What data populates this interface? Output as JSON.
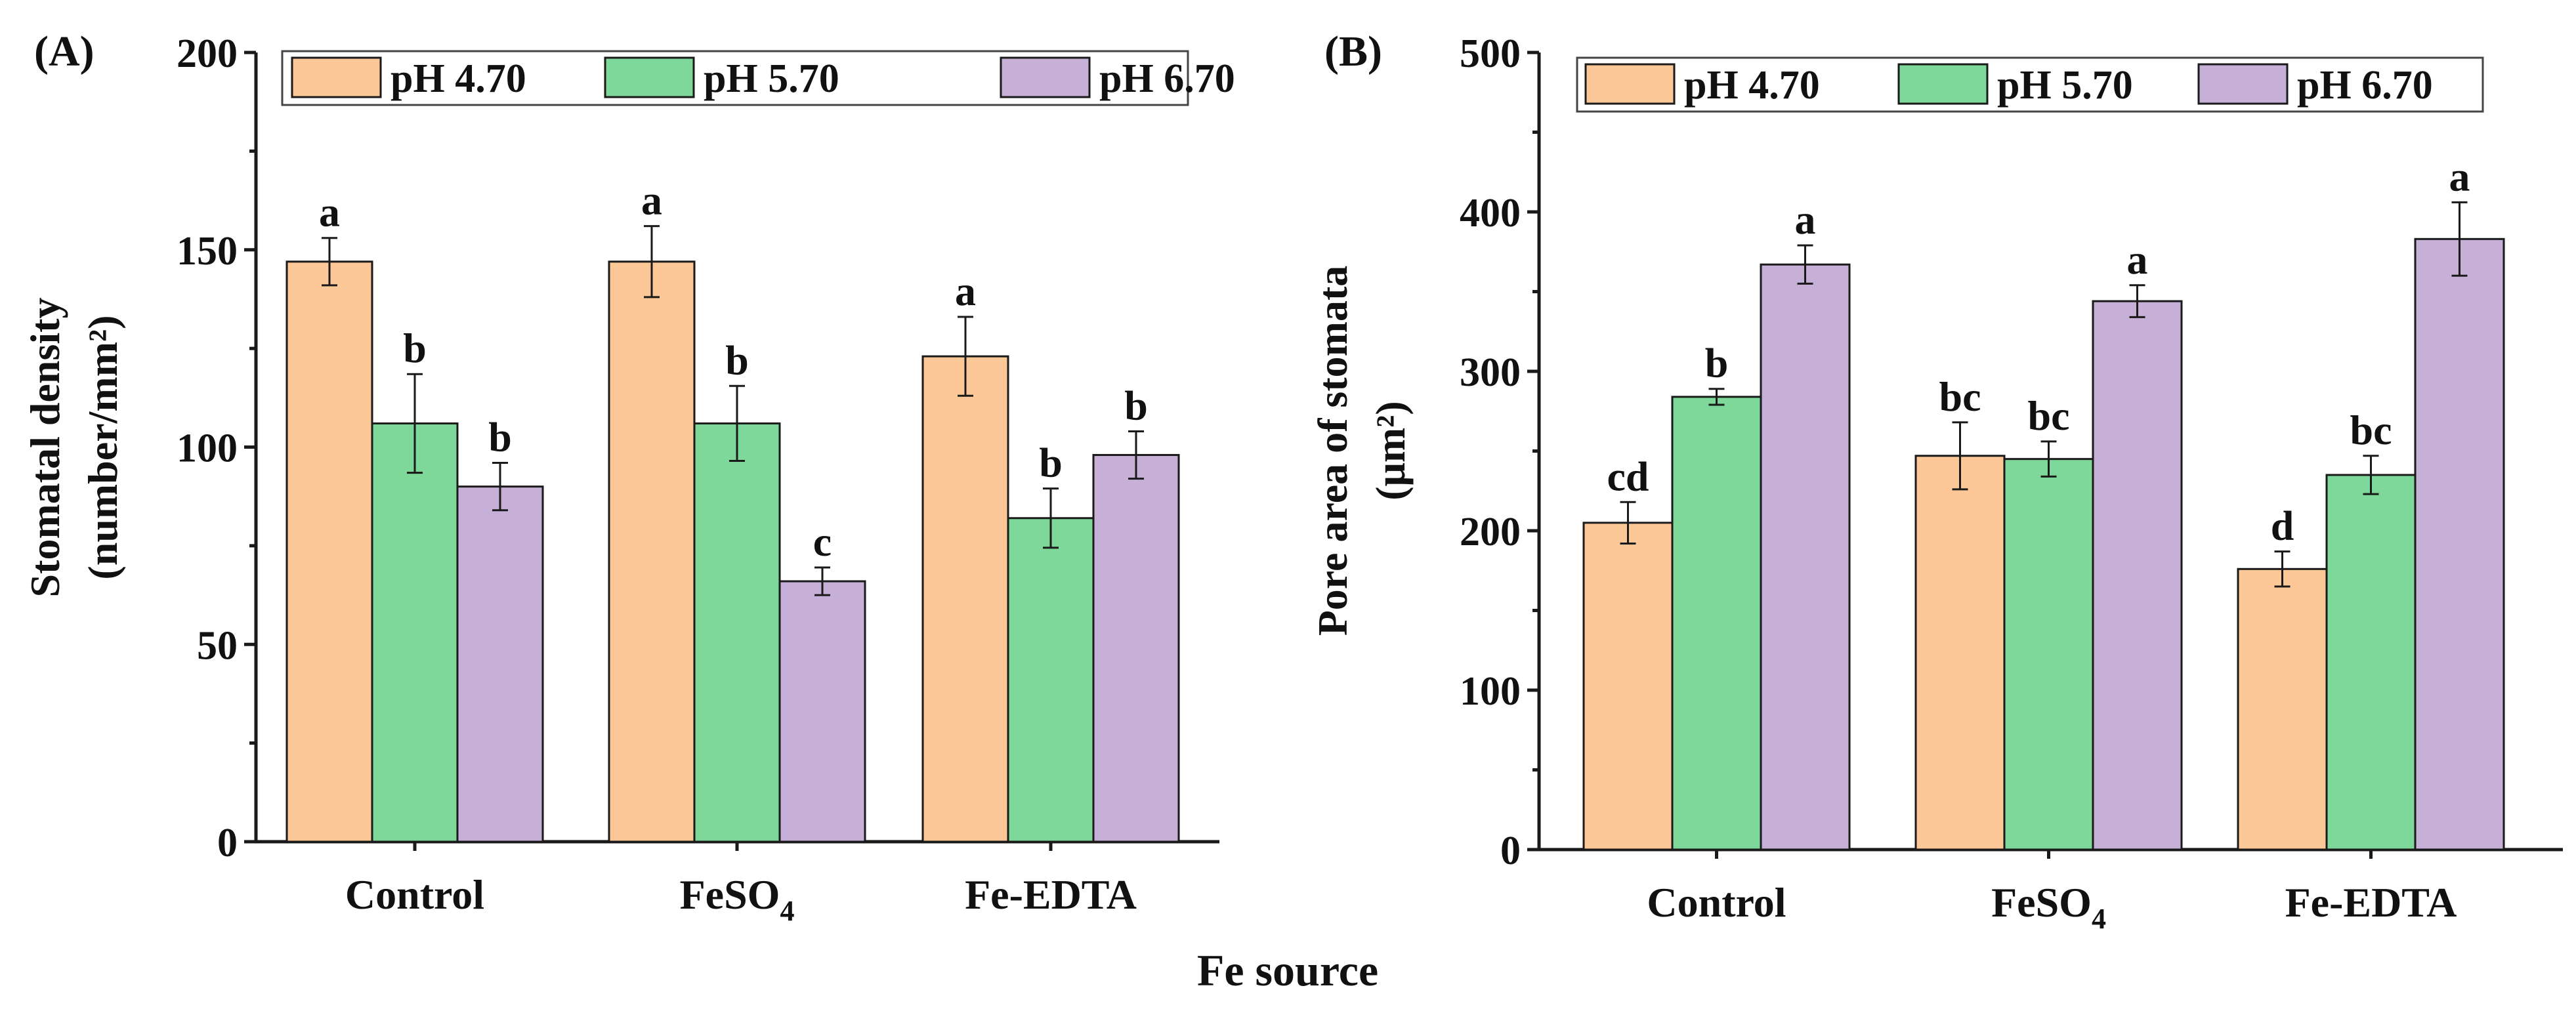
{
  "chart_data": [
    {
      "type": "bar",
      "panel_label": "(A)",
      "title": "",
      "xlabel": "",
      "ylabel": "Stomatal density",
      "ylabel_unit": "(number/mm²)",
      "categories": [
        "Control",
        "FeSO",
        "Fe-EDTA"
      ],
      "category_subscripts": [
        "",
        "4",
        ""
      ],
      "ylim": [
        0,
        200
      ],
      "yticks": [
        0,
        50,
        100,
        150,
        200
      ],
      "ytick_labels": [
        "0",
        "50",
        "100",
        "150",
        "200"
      ],
      "legend_position": "top",
      "series": [
        {
          "name": "pH 4.70",
          "color": "#FDC897",
          "values": [
            147,
            147,
            123
          ],
          "errors": [
            6,
            9,
            10
          ],
          "letters": [
            "a",
            "a",
            "a"
          ]
        },
        {
          "name": "pH 5.70",
          "color": "#7ED899",
          "values": [
            106,
            106,
            82
          ],
          "errors": [
            12.5,
            9.5,
            7.5
          ],
          "letters": [
            "b",
            "b",
            "b"
          ]
        },
        {
          "name": "pH 6.70",
          "color": "#C6B0D8",
          "values": [
            90,
            66,
            98
          ],
          "errors": [
            6,
            3.5,
            6
          ],
          "letters": [
            "b",
            "c",
            "b"
          ]
        }
      ]
    },
    {
      "type": "bar",
      "panel_label": "(B)",
      "title": "",
      "xlabel": "",
      "ylabel": "Pore area of stomata",
      "ylabel_unit": "(μm²)",
      "categories": [
        "Control",
        "FeSO",
        "Fe-EDTA"
      ],
      "category_subscripts": [
        "",
        "4",
        ""
      ],
      "ylim": [
        0,
        500
      ],
      "yticks": [
        0,
        100,
        200,
        300,
        400,
        500
      ],
      "ytick_labels": [
        "0",
        "100",
        "200",
        "300",
        "400",
        "500"
      ],
      "legend_position": "top",
      "series": [
        {
          "name": "pH 4.70",
          "color": "#FDC897",
          "values": [
            205,
            247,
            176
          ],
          "errors": [
            13,
            21,
            11
          ],
          "letters": [
            "cd",
            "bc",
            "d"
          ]
        },
        {
          "name": "pH 5.70",
          "color": "#7ED899",
          "values": [
            284,
            245,
            235
          ],
          "errors": [
            5,
            11,
            12
          ],
          "letters": [
            "b",
            "bc",
            "bc"
          ]
        },
        {
          "name": "pH 6.70",
          "color": "#C6B0D8",
          "values": [
            367,
            344,
            383
          ],
          "errors": [
            12,
            10,
            23
          ],
          "letters": [
            "a",
            "a",
            "a"
          ]
        }
      ]
    }
  ],
  "shared_xlabel": "Fe source"
}
